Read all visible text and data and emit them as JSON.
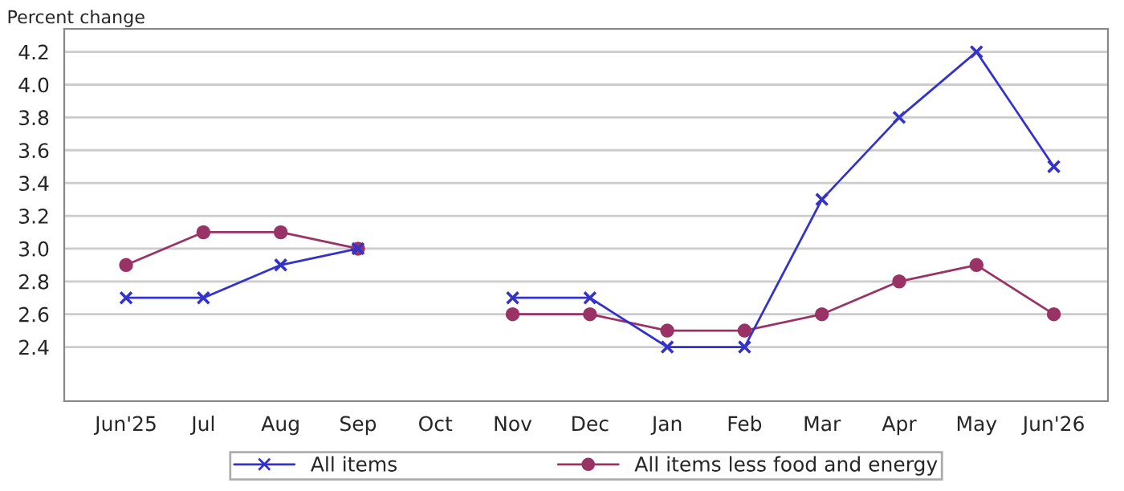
{
  "chart_data": {
    "type": "line",
    "ylabel": "Percent change",
    "categories": [
      "Jun'25",
      "Jul",
      "Aug",
      "Sep",
      "Oct",
      "Nov",
      "Dec",
      "Jan",
      "Feb",
      "Mar",
      "Apr",
      "May",
      "Jun'26"
    ],
    "series": [
      {
        "name": "All items",
        "color": "#3333cc",
        "marker": "cross",
        "values": [
          2.7,
          2.7,
          2.9,
          3.0,
          null,
          2.7,
          2.7,
          2.4,
          2.4,
          3.3,
          3.8,
          4.2,
          3.5
        ]
      },
      {
        "name": "All items less food and energy",
        "color": "#993366",
        "marker": "circle",
        "values": [
          2.9,
          3.1,
          3.1,
          3.0,
          null,
          2.6,
          2.6,
          2.5,
          2.5,
          2.6,
          2.8,
          2.9,
          2.6
        ]
      }
    ],
    "ylim": [
      2.07,
      4.34
    ],
    "yticks": [
      {
        "value": 2.4,
        "label": "2.4"
      },
      {
        "value": 2.6,
        "label": "2.6"
      },
      {
        "value": 2.8,
        "label": "2.8"
      },
      {
        "value": 3.0,
        "label": "3.0"
      },
      {
        "value": 3.2,
        "label": "3.2"
      },
      {
        "value": 3.4,
        "label": "3.4"
      },
      {
        "value": 3.6,
        "label": "3.6"
      },
      {
        "value": 3.8,
        "label": "3.8"
      },
      {
        "value": 4.0,
        "label": "4.0"
      },
      {
        "value": 4.2,
        "label": "4.2"
      }
    ],
    "grid": "y",
    "legend": "bottom",
    "line_style": "solid"
  }
}
